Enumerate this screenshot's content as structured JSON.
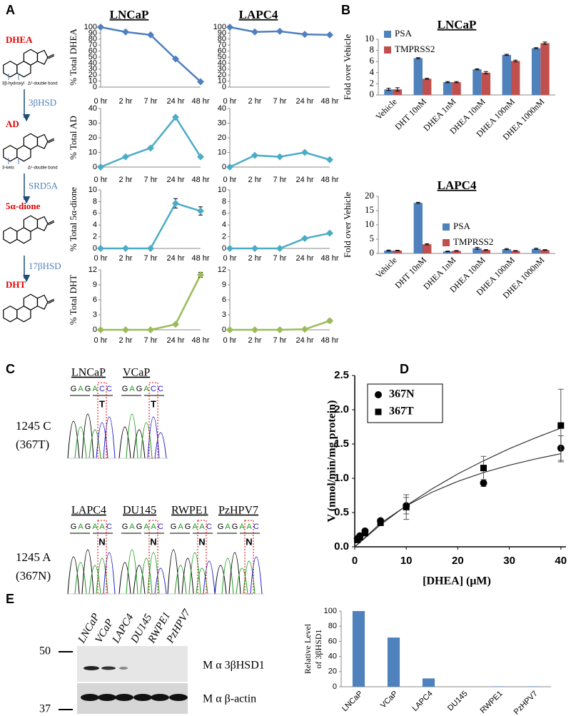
{
  "panels": [
    "A",
    "B",
    "C",
    "D",
    "E"
  ],
  "pathway": {
    "steps": [
      {
        "name": "DHEA",
        "notes": [
          "3β-hydroxyl",
          "Δ⁵-double bond"
        ]
      },
      {
        "name": "AD",
        "notes": [
          "3-keto",
          "Δ⁴-double bond"
        ]
      },
      {
        "name": "5α-dione"
      },
      {
        "name": "DHT"
      }
    ],
    "enzymes": [
      "3βHSD",
      "SRD5A",
      "17βHSD"
    ]
  },
  "sequencing": {
    "groups": [
      {
        "genotype": "1245 C",
        "codon": "(367T)",
        "samples": [
          {
            "name": "LNCaP",
            "bases": [
              "G",
              "A",
              "G",
              "A",
              "C",
              "C"
            ],
            "call": "T"
          },
          {
            "name": "VCaP",
            "bases": [
              "G",
              "A",
              "G",
              "A",
              "C",
              "C"
            ],
            "call": "T"
          }
        ]
      },
      {
        "genotype": "1245 A",
        "codon": "(367N)",
        "samples": [
          {
            "name": "LAPC4",
            "bases": [
              "G",
              "A",
              "G",
              "A",
              "A",
              "C"
            ],
            "call": "N"
          },
          {
            "name": "DU145",
            "bases": [
              "G",
              "A",
              "G",
              "A",
              "A",
              "C"
            ],
            "call": "N"
          },
          {
            "name": "RWPE1",
            "bases": [
              "G",
              "A",
              "G",
              "A",
              "A",
              "C"
            ],
            "call": "N"
          },
          {
            "name": "PzHPV7",
            "bases": [
              "G",
              "A",
              "G",
              "A",
              "A",
              "C"
            ],
            "call": "N"
          }
        ]
      }
    ]
  },
  "western": {
    "lanes": [
      "LNCaP",
      "VCaP",
      "LAPC4",
      "DU145",
      "RWPE1",
      "PzHPV7"
    ],
    "markers": [
      50,
      37
    ],
    "antibodies": [
      "M α 3βHSD1",
      "M α β-actin"
    ]
  },
  "chart_data": [
    {
      "type": "line",
      "title": "LNCaP",
      "ylabel": "% Total DHEA",
      "categories": [
        "0 hr",
        "2 hr",
        "7 hr",
        "24 hr",
        "48 hr"
      ],
      "values": [
        100,
        92,
        87,
        47,
        9
      ],
      "color": "#4f7fbf",
      "ylim": [
        0,
        100
      ],
      "yticks": [
        0,
        10,
        20,
        30,
        40,
        50,
        60,
        70,
        80,
        90,
        100
      ]
    },
    {
      "type": "line",
      "title": "LAPC4",
      "categories": [
        "0 hr",
        "2 hr",
        "7 hr",
        "24 hr",
        "48 hr"
      ],
      "values": [
        100,
        92,
        93,
        88,
        87
      ],
      "color": "#4f7fbf",
      "ylim": [
        0,
        100
      ],
      "yticks": [
        0,
        10,
        20,
        30,
        40,
        50,
        60,
        70,
        80,
        90,
        100
      ]
    },
    {
      "type": "line",
      "ylabel": "% Total AD",
      "categories": [
        "0 hr",
        "2 hr",
        "7 hr",
        "24 hr",
        "48 hr"
      ],
      "values": [
        0,
        7,
        13,
        34,
        7
      ],
      "color": "#4bacc6",
      "ylim": [
        0,
        40
      ],
      "yticks": [
        0,
        10,
        20,
        30,
        40
      ]
    },
    {
      "type": "line",
      "categories": [
        "0 hr",
        "2 hr",
        "7 hr",
        "24 hr",
        "48 hr"
      ],
      "values": [
        0,
        8,
        7,
        10,
        5
      ],
      "color": "#4bacc6",
      "ylim": [
        0,
        40
      ],
      "yticks": [
        0,
        10,
        20,
        30,
        40
      ]
    },
    {
      "type": "line",
      "ylabel": "% Total 5α-dione",
      "categories": [
        "0 hr",
        "2 hr",
        "7 hr",
        "24 hr",
        "48 hr"
      ],
      "values": [
        0,
        0,
        0,
        7.7,
        6.4
      ],
      "errors": [
        null,
        null,
        null,
        0.8,
        0.7
      ],
      "color": "#4bacc6",
      "ylim": [
        0,
        10
      ],
      "yticks": [
        0,
        2,
        4,
        6,
        8,
        10
      ]
    },
    {
      "type": "line",
      "categories": [
        "0 hr",
        "2 hr",
        "7 hr",
        "24 hr",
        "48 hr"
      ],
      "values": [
        0,
        0,
        0,
        1.7,
        2.6
      ],
      "color": "#4bacc6",
      "ylim": [
        0,
        10
      ],
      "yticks": [
        0,
        2,
        4,
        6,
        8,
        10
      ]
    },
    {
      "type": "line",
      "ylabel": "% Total DHT",
      "categories": [
        "0 hr",
        "2 hr",
        "7 hr",
        "24 hr",
        "48 hr"
      ],
      "values": [
        0,
        0,
        0,
        1.1,
        11
      ],
      "errors": [
        null,
        null,
        null,
        0.15,
        0.5
      ],
      "color": "#9bbb59",
      "ylim": [
        0,
        12
      ],
      "yticks": [
        0,
        3,
        6,
        9,
        12
      ]
    },
    {
      "type": "line",
      "categories": [
        "0 hr",
        "2 hr",
        "7 hr",
        "24 hr",
        "48 hr"
      ],
      "values": [
        0,
        0,
        0,
        0.1,
        1.8
      ],
      "errors": [
        null,
        null,
        null,
        null,
        0.3
      ],
      "color": "#9bbb59",
      "ylim": [
        0,
        12
      ],
      "yticks": [
        0,
        3,
        6,
        9,
        12
      ]
    },
    {
      "type": "bar",
      "title": "LNCaP",
      "ylabel": "Fold over Vehicle",
      "categories": [
        "Vehicle",
        "DHT 10nM",
        "DHEA 1nM",
        "DHEA 10nM",
        "DHEA 100nM",
        "DHEA 1000nM"
      ],
      "series": [
        {
          "name": "PSA",
          "color": "#4f81bd",
          "values": [
            1,
            6.6,
            2.3,
            4.6,
            7.2,
            8.4
          ],
          "errors": [
            0.2,
            0.1,
            0.1,
            0.1,
            0.1,
            0.1
          ]
        },
        {
          "name": "TMPRSS2",
          "color": "#c0504d",
          "values": [
            1,
            2.9,
            2.3,
            4.0,
            6.1,
            9.3
          ],
          "errors": [
            0.3,
            0.1,
            0.1,
            0.2,
            0.15,
            0.2
          ]
        }
      ],
      "ylim": [
        0,
        10
      ],
      "yticks": [
        0,
        2,
        4,
        6,
        8,
        10
      ],
      "legend": "upper left"
    },
    {
      "type": "bar",
      "title": "LAPC4",
      "ylabel": "Fold over Vehicle",
      "categories": [
        "Vehicle",
        "DHT 10nM",
        "DHEA 1nM",
        "DHEA 10nM",
        "DHEA 100nM",
        "DHEA 1000nM"
      ],
      "series": [
        {
          "name": "PSA",
          "color": "#4f81bd",
          "values": [
            1,
            17.7,
            0.7,
            1.8,
            1.5,
            1.6
          ],
          "errors": [
            0.2,
            0.2,
            0.1,
            0.3,
            0.2,
            0.2
          ]
        },
        {
          "name": "TMPRSS2",
          "color": "#c0504d",
          "values": [
            1,
            3.2,
            0.9,
            1.2,
            0.9,
            1.2
          ],
          "errors": [
            0.1,
            0.2,
            0.1,
            0.1,
            0.1,
            0.1
          ]
        }
      ],
      "ylim": [
        0,
        20
      ],
      "yticks": [
        0,
        5,
        10,
        15,
        20
      ],
      "legend": "right"
    },
    {
      "type": "scatter",
      "xlabel": "[DHEA] (μM)",
      "ylabel": "V (nmol/min/mg protein)",
      "x": [
        0.5,
        1,
        2,
        5,
        10,
        25,
        40
      ],
      "fit_x": [
        0,
        5,
        10,
        15,
        20,
        25,
        30,
        35,
        40
      ],
      "series": [
        {
          "name": "367N",
          "marker": "circle",
          "color": "#000000",
          "values": [
            0.12,
            0.16,
            0.23,
            0.38,
            0.6,
            0.93,
            1.44
          ],
          "errors": [
            0.01,
            0.02,
            0.02,
            0.03,
            0.12,
            0.05,
            0.18
          ],
          "fit_values": [
            0,
            0.344,
            0.598,
            0.797,
            0.955,
            1.084,
            1.191,
            1.281,
            1.359
          ]
        },
        {
          "name": "367T",
          "marker": "square",
          "color": "#000000",
          "values": [
            0.1,
            0.14,
            0.2,
            0.35,
            0.58,
            1.15,
            1.77
          ],
          "errors": [
            0.01,
            0.02,
            0.02,
            0.03,
            0.18,
            0.17,
            0.53
          ],
          "fit_values": [
            0,
            0.321,
            0.601,
            0.845,
            1.064,
            1.255,
            1.432,
            1.588,
            1.732
          ]
        }
      ],
      "xlim": [
        0,
        41
      ],
      "ylim": [
        0,
        2.5
      ],
      "xticks": [
        0,
        10,
        20,
        30,
        40
      ],
      "yticks": [
        {
          "value": 0,
          "label": "0.0"
        },
        0.5,
        {
          "value": 1,
          "label": "1.0"
        },
        1.5,
        {
          "value": 2,
          "label": "2.0"
        },
        2.5
      ],
      "legend": "upper left"
    },
    {
      "type": "bar",
      "ylabel": [
        "Relative Level",
        "of 3βHSD1"
      ],
      "categories": [
        "LNCaP",
        "VCaP",
        "LAPC4",
        "DU145",
        "RWPE1",
        "PzHPV7"
      ],
      "series": [
        {
          "color": "#4f81bd",
          "values": [
            100,
            65,
            11,
            0,
            0.5,
            0.5
          ]
        }
      ],
      "ylim": [
        0,
        100
      ],
      "yticks": [
        0,
        20,
        40,
        60,
        80,
        100
      ]
    }
  ]
}
